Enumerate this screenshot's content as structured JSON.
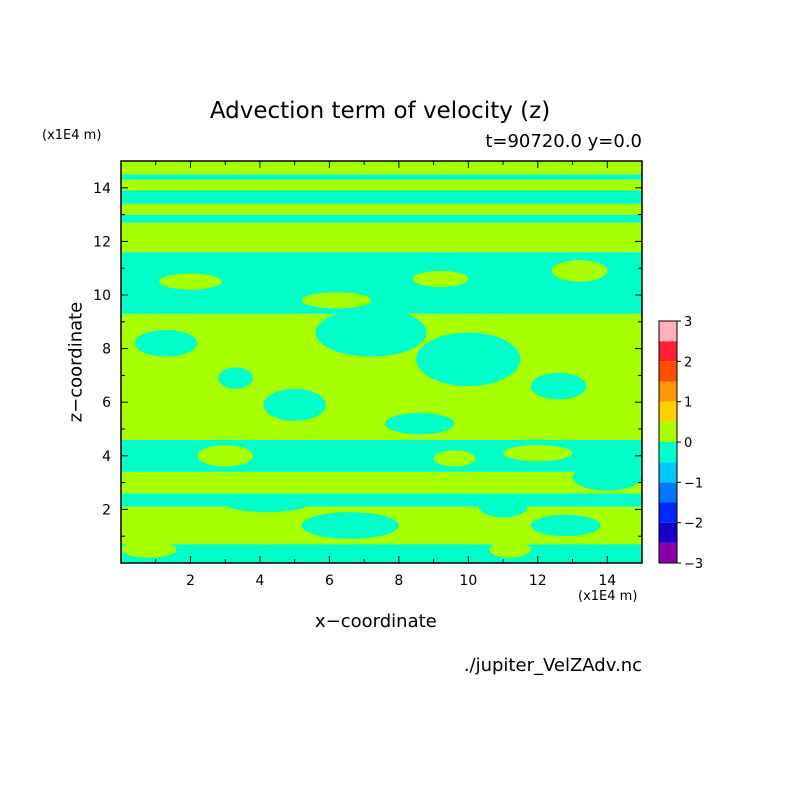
{
  "chart_data": {
    "type": "heatmap",
    "title": "Advection term of velocity (z)",
    "subtitle": "t=90720.0 y=0.0",
    "xlabel": "x−coordinate",
    "ylabel": "z−coordinate",
    "x_unit": "(x1E4 m)",
    "y_unit": "(x1E4 m)",
    "xlim": [
      0,
      15
    ],
    "ylim": [
      0,
      15
    ],
    "x_ticks": [
      2,
      4,
      6,
      8,
      10,
      12,
      14
    ],
    "y_ticks": [
      2,
      4,
      6,
      8,
      10,
      12,
      14
    ],
    "colorbar": {
      "levels": [
        -3,
        -2.5,
        -2,
        -1.5,
        -1,
        -0.5,
        0,
        0.5,
        1,
        1.5,
        2,
        2.5,
        3
      ],
      "tick_labels": [
        "3",
        "2",
        "1",
        "0",
        "−1",
        "−2",
        "−3"
      ],
      "colors": [
        "#8a00a8",
        "#1a00c8",
        "#0028ff",
        "#0078ff",
        "#00c8ff",
        "#00ffc8",
        "#a8ff00",
        "#ffd000",
        "#ff9800",
        "#ff5000",
        "#ff2030",
        "#ffb0b8"
      ]
    },
    "field_colors": {
      "negative": "#00ffc8",
      "positive": "#a8ff00"
    },
    "bands": [
      {
        "z_min": 0.0,
        "z_max": 0.7,
        "value": "negative"
      },
      {
        "z_min": 0.7,
        "z_max": 2.1,
        "value": "positive"
      },
      {
        "z_min": 2.1,
        "z_max": 2.6,
        "value": "negative"
      },
      {
        "z_min": 2.6,
        "z_max": 3.4,
        "value": "positive"
      },
      {
        "z_min": 3.4,
        "z_max": 4.6,
        "value": "negative"
      },
      {
        "z_min": 4.6,
        "z_max": 9.3,
        "value": "positive"
      },
      {
        "z_min": 9.3,
        "z_max": 11.6,
        "value": "negative"
      },
      {
        "z_min": 11.6,
        "z_max": 12.7,
        "value": "positive"
      },
      {
        "z_min": 12.7,
        "z_max": 13.0,
        "value": "negative"
      },
      {
        "z_min": 13.0,
        "z_max": 13.4,
        "value": "positive"
      },
      {
        "z_min": 13.4,
        "z_max": 13.9,
        "value": "negative"
      },
      {
        "z_min": 13.9,
        "z_max": 14.3,
        "value": "positive"
      },
      {
        "z_min": 14.3,
        "z_max": 14.5,
        "value": "negative"
      },
      {
        "z_min": 14.5,
        "z_max": 15.0,
        "value": "positive"
      }
    ],
    "patches": [
      {
        "x": 7.2,
        "z": 8.6,
        "rx": 1.6,
        "rz": 0.9,
        "value": "negative"
      },
      {
        "x": 10.0,
        "z": 7.6,
        "rx": 1.5,
        "rz": 1.0,
        "value": "negative"
      },
      {
        "x": 5.0,
        "z": 5.9,
        "rx": 0.9,
        "rz": 0.6,
        "value": "negative"
      },
      {
        "x": 12.6,
        "z": 6.6,
        "rx": 0.8,
        "rz": 0.5,
        "value": "negative"
      },
      {
        "x": 1.3,
        "z": 8.2,
        "rx": 0.9,
        "rz": 0.5,
        "value": "negative"
      },
      {
        "x": 3.3,
        "z": 6.9,
        "rx": 0.5,
        "rz": 0.4,
        "value": "negative"
      },
      {
        "x": 8.6,
        "z": 5.2,
        "rx": 1.0,
        "rz": 0.4,
        "value": "negative"
      },
      {
        "x": 14.0,
        "z": 3.2,
        "rx": 1.0,
        "rz": 0.5,
        "value": "negative"
      },
      {
        "x": 4.2,
        "z": 2.2,
        "rx": 1.2,
        "rz": 0.3,
        "value": "negative"
      },
      {
        "x": 11.0,
        "z": 2.1,
        "rx": 0.7,
        "rz": 0.4,
        "value": "negative"
      },
      {
        "x": 2.0,
        "z": 10.5,
        "rx": 0.9,
        "rz": 0.3,
        "value": "positive"
      },
      {
        "x": 6.2,
        "z": 9.8,
        "rx": 1.0,
        "rz": 0.3,
        "value": "positive"
      },
      {
        "x": 13.2,
        "z": 10.9,
        "rx": 0.8,
        "rz": 0.4,
        "value": "positive"
      },
      {
        "x": 9.2,
        "z": 10.6,
        "rx": 0.8,
        "rz": 0.3,
        "value": "positive"
      },
      {
        "x": 3.0,
        "z": 4.0,
        "rx": 0.8,
        "rz": 0.4,
        "value": "positive"
      },
      {
        "x": 9.6,
        "z": 3.9,
        "rx": 0.6,
        "rz": 0.3,
        "value": "positive"
      },
      {
        "x": 12.0,
        "z": 4.1,
        "rx": 1.0,
        "rz": 0.3,
        "value": "positive"
      },
      {
        "x": 6.6,
        "z": 1.4,
        "rx": 1.4,
        "rz": 0.5,
        "value": "negative"
      },
      {
        "x": 12.8,
        "z": 1.4,
        "rx": 1.0,
        "rz": 0.4,
        "value": "negative"
      },
      {
        "x": 0.8,
        "z": 0.5,
        "rx": 0.8,
        "rz": 0.3,
        "value": "positive"
      },
      {
        "x": 11.2,
        "z": 0.5,
        "rx": 0.6,
        "rz": 0.3,
        "value": "positive"
      }
    ]
  },
  "filename": "./jupiter_VelZAdv.nc"
}
